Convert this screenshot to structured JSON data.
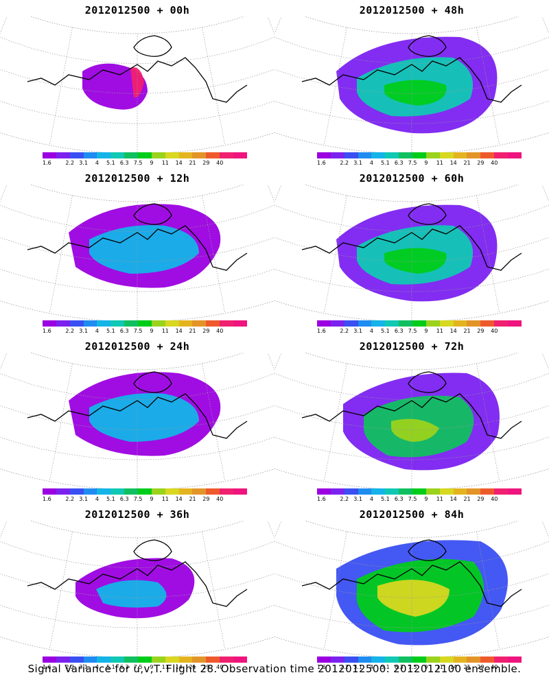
{
  "panels": [
    {
      "title": "2012012500 + 00h",
      "level": 0
    },
    {
      "title": "2012012500 + 48h",
      "level": 3
    },
    {
      "title": "2012012500 + 12h",
      "level": 1
    },
    {
      "title": "2012012500 + 60h",
      "level": 3
    },
    {
      "title": "2012012500 + 24h",
      "level": 1
    },
    {
      "title": "2012012500 + 72h",
      "level": 4
    },
    {
      "title": "2012012500 + 36h",
      "level": 2
    },
    {
      "title": "2012012500 + 84h",
      "level": 5
    }
  ],
  "colorbar": {
    "colors": [
      "#9b00e0",
      "#7b22f0",
      "#3a4ff2",
      "#1e8cf0",
      "#14b4e8",
      "#10c8b4",
      "#10c060",
      "#00cc1a",
      "#9ad21c",
      "#d8d820",
      "#e4b420",
      "#e39428",
      "#ef5a2c",
      "#f02070",
      "#f0147e"
    ],
    "labels": [
      "1.6",
      "2.2",
      "3.1",
      "4",
      "5.1",
      "6.3",
      "7.5",
      "9",
      "11",
      "14",
      "21",
      "29",
      "40"
    ]
  },
  "caption": "Signal Variance for u,v,T. Flight 28. Observation time 2012012500. 2012012100 ensemble."
}
